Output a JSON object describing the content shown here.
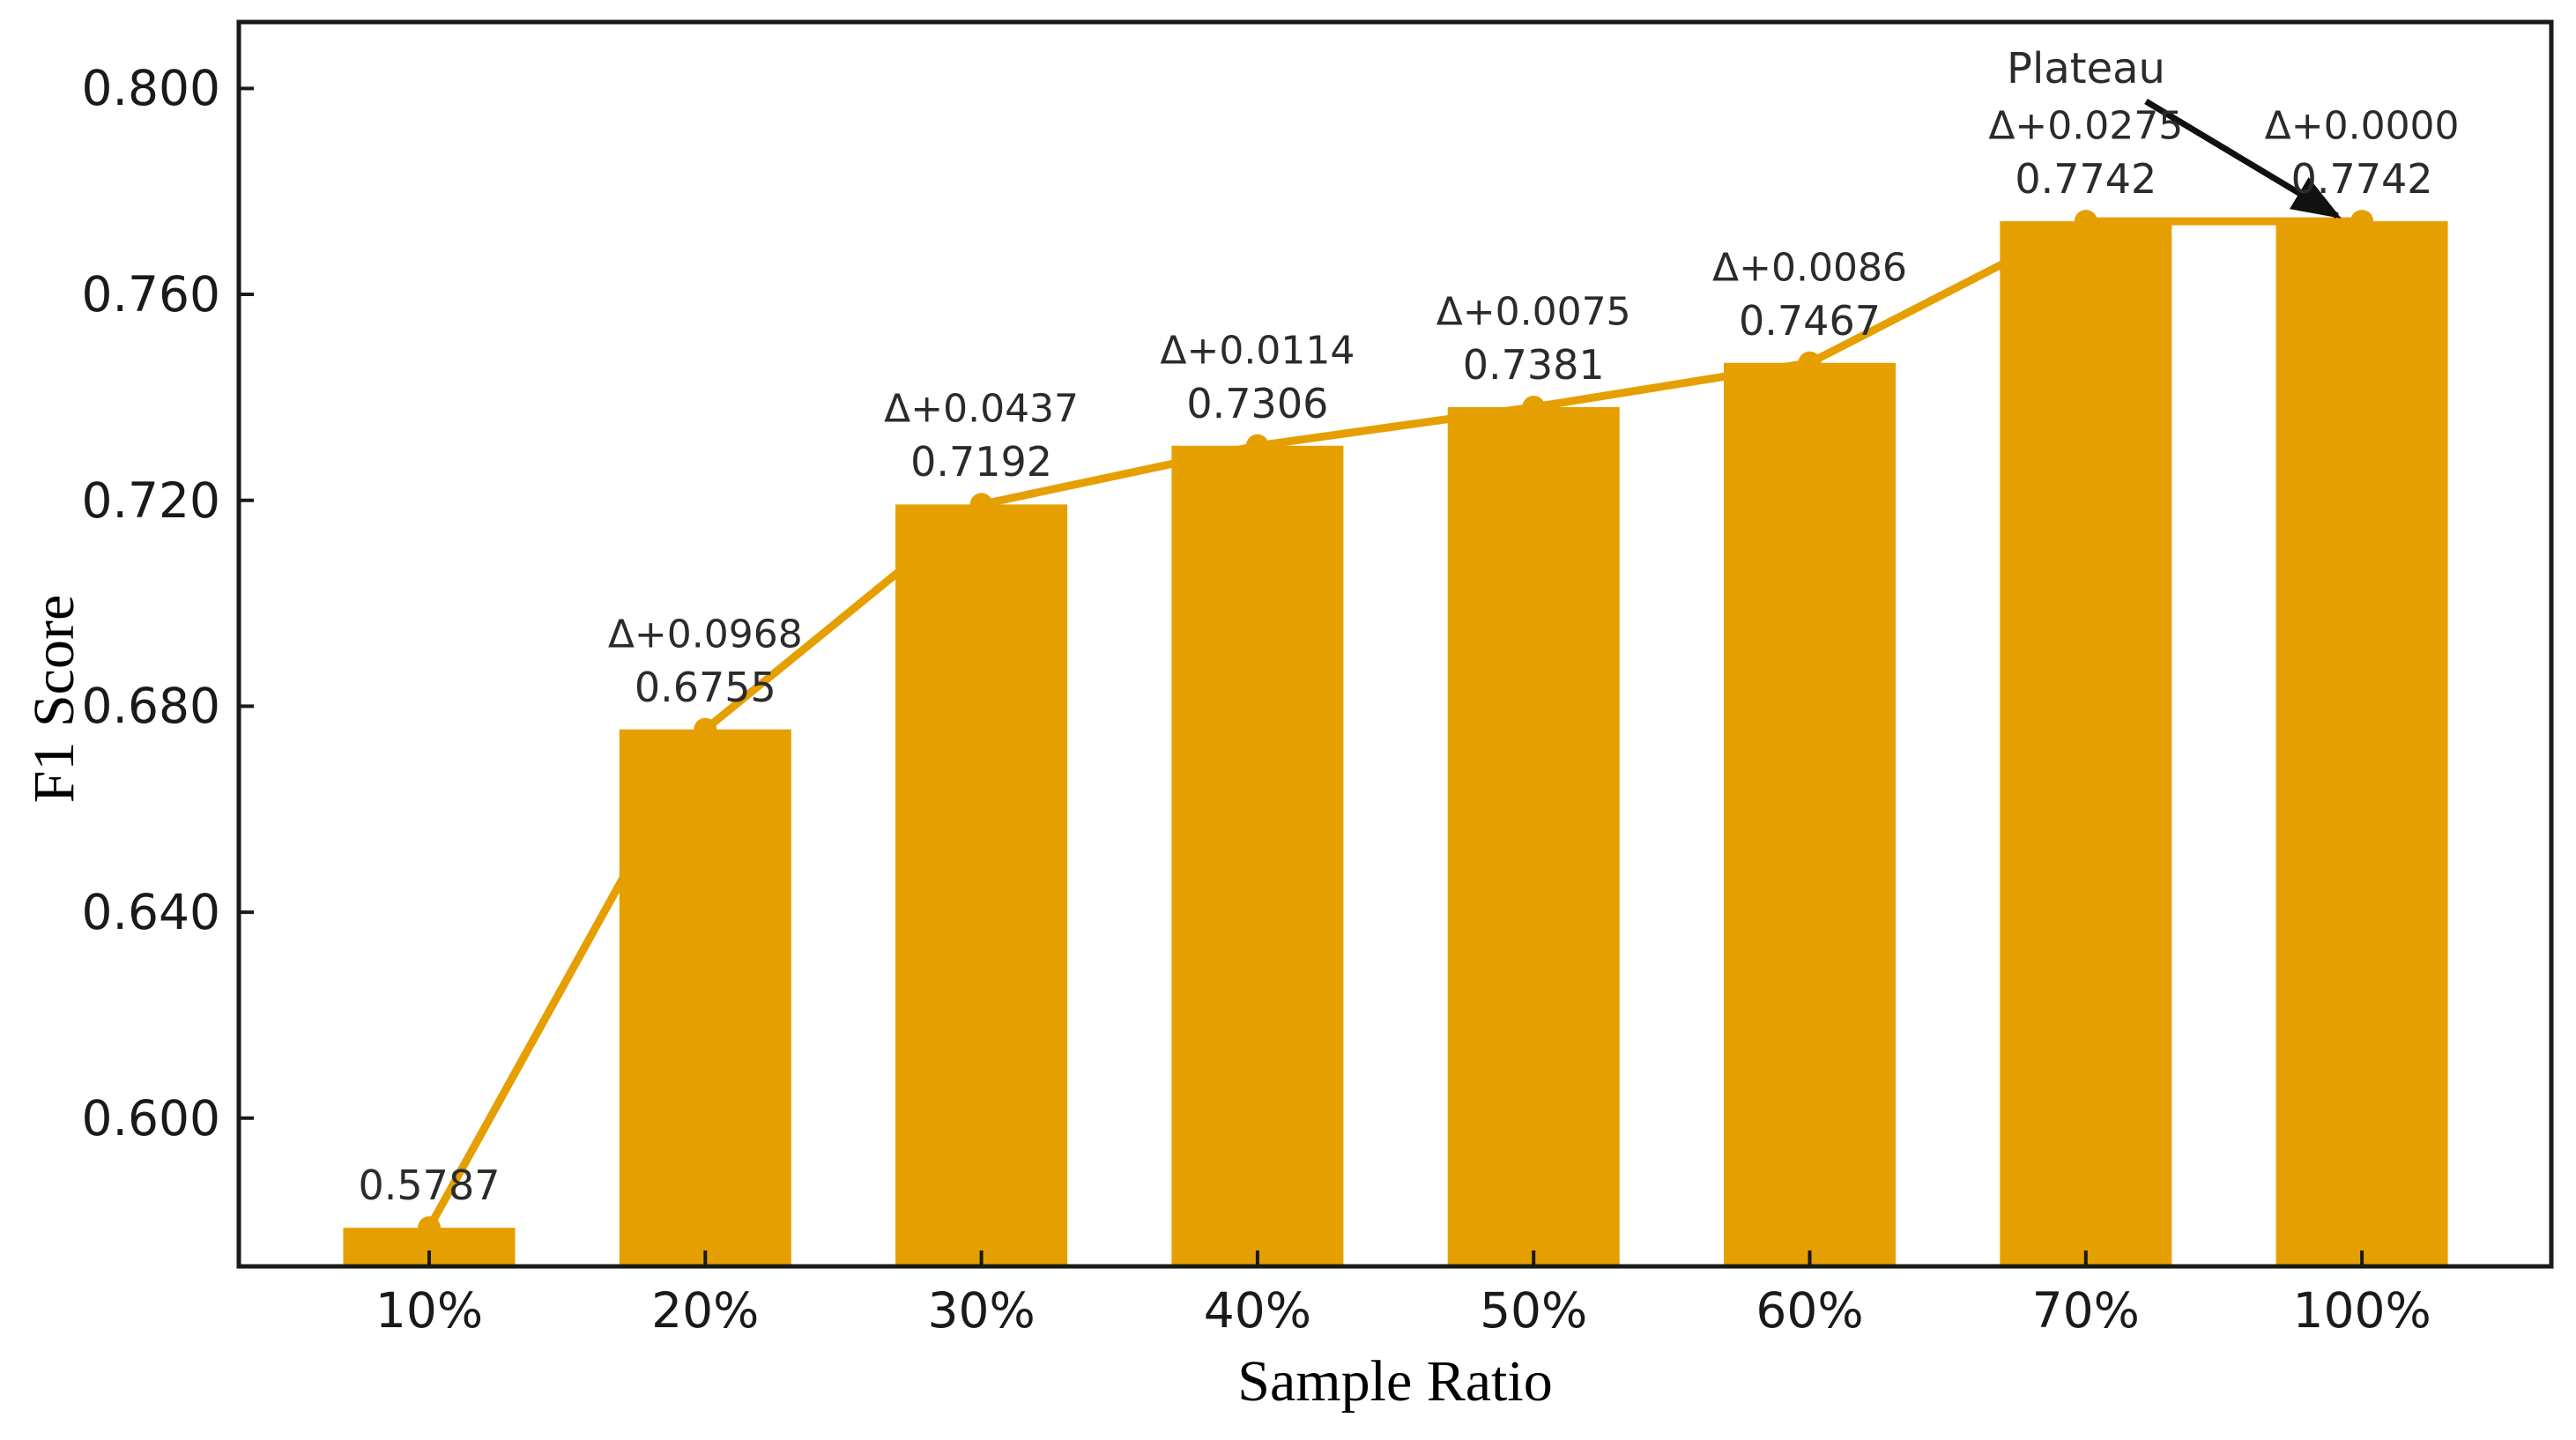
{
  "figure": {
    "background": "#ffffff",
    "bar_color": "#E69F00",
    "line_color": "#E69F00",
    "marker_color": "#E69F00",
    "axis_color": "#1a1a1a",
    "annotation_text_color": "#2b2b2b",
    "arrow_color": "#111111"
  },
  "chart_data": {
    "type": "bar",
    "overlay": "line",
    "title": "",
    "xlabel": "Sample Ratio",
    "ylabel": "F1 Score",
    "categories": [
      "10%",
      "20%",
      "30%",
      "40%",
      "50%",
      "60%",
      "70%",
      "100%"
    ],
    "values": [
      0.5787,
      0.6755,
      0.7192,
      0.7306,
      0.7381,
      0.7467,
      0.7742,
      0.7742
    ],
    "value_labels": [
      "0.5787",
      "0.6755",
      "0.7192",
      "0.7306",
      "0.7381",
      "0.7467",
      "0.7742",
      "0.7742"
    ],
    "delta_labels": [
      "",
      "Δ+0.0968",
      "Δ+0.0437",
      "Δ+0.0114",
      "Δ+0.0075",
      "Δ+0.0086",
      "Δ+0.0275",
      "Δ+0.0000"
    ],
    "y_ticks": [
      0.6,
      0.64,
      0.68,
      0.72,
      0.76,
      0.8
    ],
    "y_tick_labels": [
      "0.600",
      "0.640",
      "0.680",
      "0.720",
      "0.760",
      "0.800"
    ],
    "ylim": [
      0.5712,
      0.8129
    ],
    "grid": false,
    "legend": null,
    "annotation": {
      "text": "Plateau",
      "points_to_category": "100%"
    }
  }
}
